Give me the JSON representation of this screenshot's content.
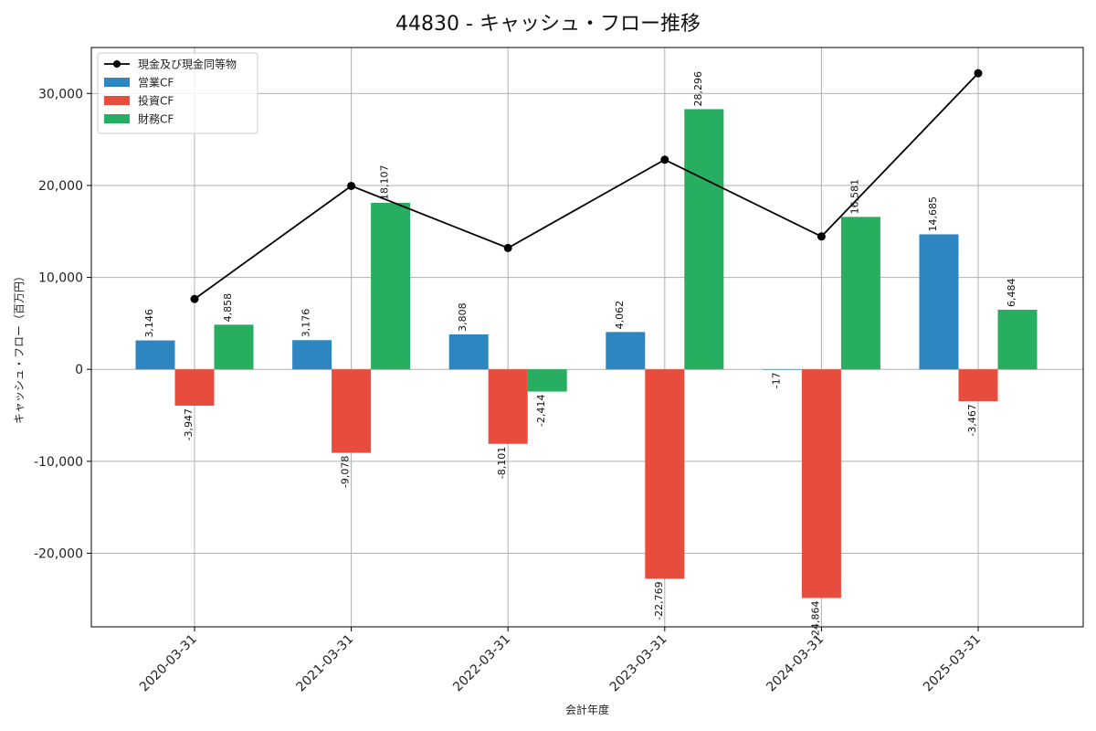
{
  "chart_data": {
    "type": "bar",
    "title": "44830 - キャッシュ・フロー推移",
    "xlabel": "会計年度",
    "ylabel": "キャッシュ・フロー（百万円）",
    "ylim": [
      -28000,
      35000
    ],
    "yticks": [
      -20000,
      -10000,
      0,
      10000,
      20000,
      30000
    ],
    "ytick_labels": [
      "-20,000",
      "-10,000",
      "0",
      "10,000",
      "20,000",
      "30,000"
    ],
    "grid": true,
    "legend_position": "top-left",
    "categories": [
      "2020-03-31",
      "2021-03-31",
      "2022-03-31",
      "2023-03-31",
      "2024-03-31",
      "2025-03-31"
    ],
    "series": [
      {
        "name": "営業CF",
        "kind": "bar",
        "color": "#2e86c1",
        "values": [
          3146,
          3176,
          3808,
          4062,
          -17,
          14685
        ],
        "labels": [
          "3,146",
          "3,176",
          "3,808",
          "4,062",
          "-17",
          "14,685"
        ]
      },
      {
        "name": "投資CF",
        "kind": "bar",
        "color": "#e74c3c",
        "values": [
          -3947,
          -9078,
          -8101,
          -22769,
          -24864,
          -3467
        ],
        "labels": [
          "-3,947",
          "-9,078",
          "-8,101",
          "-22,769",
          "-24,864",
          "-3,467"
        ]
      },
      {
        "name": "財務CF",
        "kind": "bar",
        "color": "#27ae60",
        "values": [
          4858,
          18107,
          -2414,
          28296,
          16581,
          6484
        ],
        "labels": [
          "4,858",
          "18,107",
          "-2,414",
          "28,296",
          "16,581",
          "6,484"
        ]
      },
      {
        "name": "現金及び現金同等物",
        "kind": "line",
        "color": "#000000",
        "values": [
          7650,
          19950,
          13200,
          22800,
          14450,
          32200
        ]
      }
    ]
  }
}
